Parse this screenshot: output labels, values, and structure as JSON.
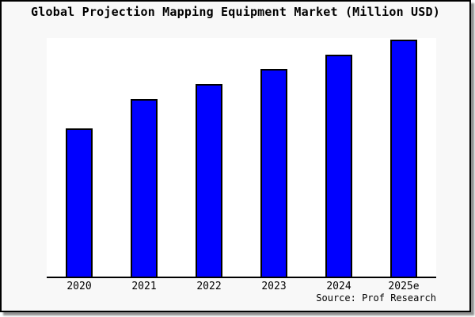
{
  "page": {
    "background": "#ffffff",
    "card_background": "#f8f8f8",
    "border_color": "#000000",
    "shadow_color": "#909090"
  },
  "chart_data": {
    "type": "bar",
    "title": "Global Projection Mapping Equipment Market (Million USD)",
    "categories": [
      "2020",
      "2021",
      "2022",
      "2023",
      "2024",
      "2025e"
    ],
    "values": [
      100,
      120,
      130,
      140,
      150,
      160
    ],
    "values_note": "value axis is unlabeled; values are relative bar heights normalized to 2020 = 100",
    "ylim": [
      0,
      161
    ],
    "xlabel": "",
    "ylabel": "",
    "grid": false,
    "legend": null,
    "bar_color": "#0000ff",
    "bar_border_color": "#000000",
    "plot_background": "#ffffff",
    "source": "Source: Prof Research"
  }
}
